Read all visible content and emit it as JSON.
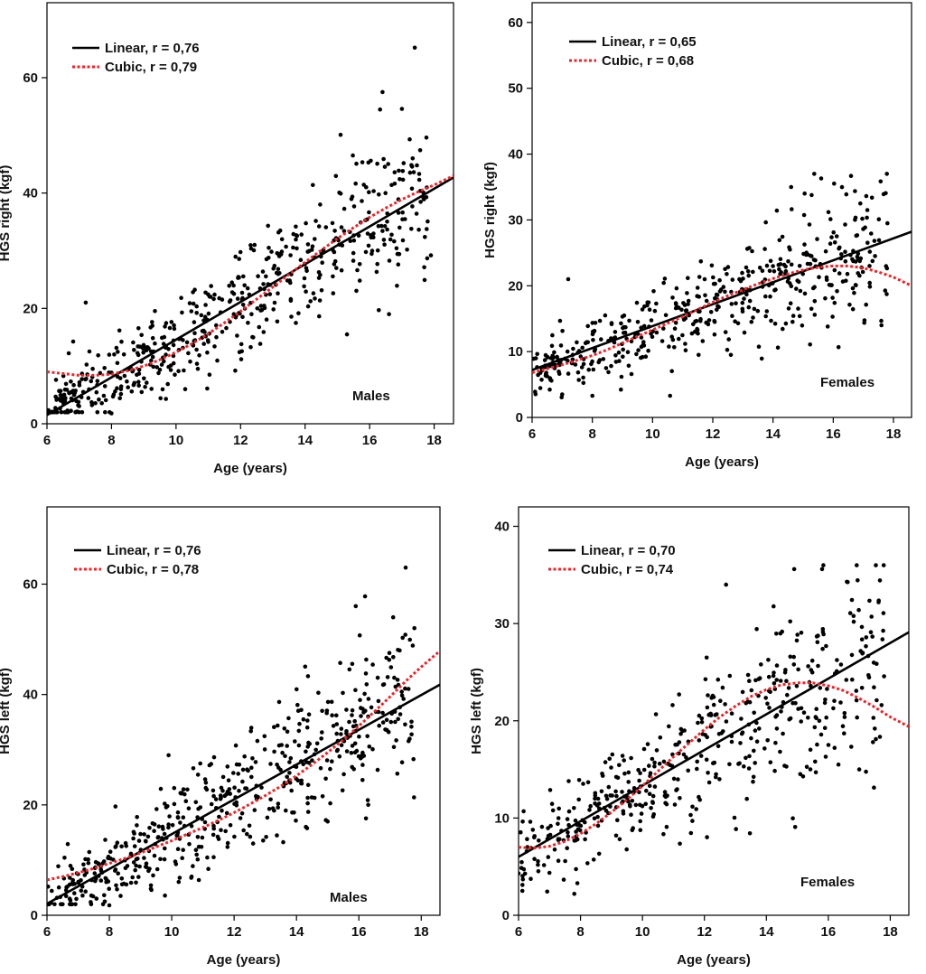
{
  "colors": {
    "linear": "#000000",
    "cubic": "#e8262b",
    "points": "#000000",
    "frame": "#000000"
  },
  "chart_data": [
    {
      "type": "scatter",
      "xlabel": "Age (years)",
      "ylabel": "HGS right (kgf)",
      "group_label": "Males",
      "xlim": [
        6,
        18.6
      ],
      "ylim": [
        0,
        73
      ],
      "xticks": [
        6,
        8,
        10,
        12,
        14,
        16,
        18
      ],
      "yticks": [
        0,
        20,
        40,
        60
      ],
      "legend_position": "top-left",
      "series": [
        {
          "name": "Linear, r = 0,76",
          "kind": "linear",
          "x": [
            6,
            18.6
          ],
          "y": [
            1.5,
            42.7
          ]
        },
        {
          "name": "Cubic, r = 0,79",
          "kind": "cubic",
          "x": [
            6,
            6.5,
            7,
            7.5,
            8,
            8.5,
            9,
            9.5,
            10,
            10.5,
            11,
            11.5,
            12,
            12.5,
            13,
            13.5,
            14,
            14.5,
            15,
            15.5,
            16,
            16.5,
            17,
            17.5,
            18,
            18.6
          ],
          "y": [
            9.0,
            8.7,
            8.4,
            8.4,
            8.6,
            9.2,
            10.0,
            11.1,
            12.4,
            13.9,
            15.6,
            17.5,
            19.5,
            21.6,
            23.7,
            25.9,
            28.0,
            30.1,
            32.1,
            34.0,
            35.8,
            37.4,
            38.9,
            40.2,
            41.4,
            43.0
          ]
        }
      ],
      "points": {
        "count": 540,
        "age_range": [
          6,
          17.8
        ],
        "linear_fit": [
          1.5,
          42.7
        ],
        "spread": [
          2.5,
          0.42
        ],
        "clip": [
          2,
          66
        ],
        "seed": 11,
        "highlights": [
          [
            17.4,
            65.2
          ],
          [
            16.4,
            57.5
          ],
          [
            17.0,
            54.6
          ],
          [
            15.1,
            50.1
          ],
          [
            7.8,
            2.0
          ],
          [
            8.0,
            1.8
          ],
          [
            15.3,
            15.5
          ],
          [
            16.6,
            19.0
          ],
          [
            17.9,
            29.2
          ],
          [
            7.2,
            21.0
          ]
        ]
      }
    },
    {
      "type": "scatter",
      "xlabel": "Age (years)",
      "ylabel": "HGS right (kgf)",
      "group_label": "Females",
      "xlim": [
        6,
        18.6
      ],
      "ylim": [
        0,
        63
      ],
      "xticks": [
        6,
        8,
        10,
        12,
        14,
        16,
        18
      ],
      "yticks": [
        0,
        10,
        20,
        30,
        40,
        50,
        60
      ],
      "legend_position": "top-right",
      "series": [
        {
          "name": "Linear, r = 0,65",
          "kind": "linear",
          "x": [
            6,
            18.6
          ],
          "y": [
            7.2,
            28.2
          ]
        },
        {
          "name": "Cubic, r = 0,68",
          "kind": "cubic",
          "x": [
            6,
            6.5,
            7,
            7.5,
            8,
            8.5,
            9,
            9.5,
            10,
            10.5,
            11,
            11.5,
            12,
            12.5,
            13,
            13.5,
            14,
            14.5,
            15,
            15.5,
            16,
            16.5,
            17,
            17.5,
            18,
            18.6
          ],
          "y": [
            6.8,
            7.4,
            8.0,
            8.7,
            9.4,
            10.3,
            11.3,
            12.3,
            13.3,
            14.3,
            15.3,
            16.4,
            17.5,
            18.5,
            19.4,
            20.3,
            21.1,
            21.8,
            22.4,
            22.8,
            23.0,
            23.0,
            22.7,
            22.1,
            21.3,
            20.0
          ]
        }
      ],
      "points": {
        "count": 470,
        "age_range": [
          6,
          17.8
        ],
        "linear_fit": [
          7.2,
          28.2
        ],
        "spread": [
          1.8,
          0.3
        ],
        "clip": [
          3,
          37
        ],
        "seed": 23,
        "highlights": [
          [
            7.2,
            21.0
          ],
          [
            14.6,
            35.0
          ],
          [
            15.6,
            36.3
          ],
          [
            16.9,
            32.5
          ],
          [
            6.1,
            3.9
          ],
          [
            7.0,
            3.5
          ],
          [
            12.6,
            9.5
          ],
          [
            17.6,
            14.0
          ],
          [
            17.8,
            29.5
          ],
          [
            8.0,
            3.3
          ]
        ]
      }
    },
    {
      "type": "scatter",
      "xlabel": "Age (years)",
      "ylabel": "HGS left (kgf)",
      "group_label": "Males",
      "xlim": [
        6,
        18.6
      ],
      "ylim": [
        0,
        74
      ],
      "xticks": [
        6,
        8,
        10,
        12,
        14,
        16,
        18
      ],
      "yticks": [
        0,
        20,
        40,
        60
      ],
      "legend_position": "top-left",
      "series": [
        {
          "name": "Linear, r = 0,76",
          "kind": "linear",
          "x": [
            6,
            18.6
          ],
          "y": [
            2.1,
            41.8
          ]
        },
        {
          "name": "Cubic, r = 0,78",
          "kind": "cubic",
          "x": [
            6,
            6.5,
            7,
            7.5,
            8,
            8.5,
            9,
            9.5,
            10,
            10.5,
            11,
            11.5,
            12,
            12.5,
            13,
            13.5,
            14,
            14.5,
            15,
            15.5,
            16,
            16.5,
            17,
            17.5,
            18,
            18.6
          ],
          "y": [
            6.4,
            7.0,
            7.7,
            8.5,
            9.4,
            10.3,
            11.3,
            12.4,
            13.5,
            14.7,
            15.9,
            17.2,
            18.6,
            20.1,
            21.7,
            23.4,
            25.3,
            27.3,
            29.5,
            31.8,
            34.3,
            36.9,
            39.6,
            42.4,
            45.0,
            47.9
          ]
        }
      ],
      "points": {
        "count": 530,
        "age_range": [
          6,
          17.8
        ],
        "linear_fit": [
          2.1,
          41.8
        ],
        "spread": [
          2.6,
          0.42
        ],
        "clip": [
          2,
          64
        ],
        "seed": 37,
        "highlights": [
          [
            17.5,
            63.0
          ],
          [
            16.2,
            57.8
          ],
          [
            15.9,
            56.0
          ],
          [
            17.1,
            54.0
          ],
          [
            7.8,
            2.0
          ],
          [
            8.0,
            1.8
          ],
          [
            15.0,
            17.0
          ],
          [
            16.3,
            20.0
          ],
          [
            9.9,
            29.0
          ],
          [
            6.5,
            2.0
          ]
        ]
      }
    },
    {
      "type": "scatter",
      "xlabel": "Age (years)",
      "ylabel": "HGS left (kgf)",
      "group_label": "Females",
      "xlim": [
        6,
        18.6
      ],
      "ylim": [
        0,
        42
      ],
      "xticks": [
        6,
        8,
        10,
        12,
        14,
        16,
        18
      ],
      "yticks": [
        0,
        10,
        20,
        30,
        40
      ],
      "legend_position": "top-left",
      "series": [
        {
          "name": "Linear, r = 0,70",
          "kind": "linear",
          "x": [
            6,
            18.6
          ],
          "y": [
            6.0,
            29.1
          ]
        },
        {
          "name": "Cubic, r = 0,74",
          "kind": "cubic",
          "x": [
            6,
            6.5,
            7,
            7.5,
            8,
            8.5,
            9,
            9.5,
            10,
            10.5,
            11,
            11.5,
            12,
            12.5,
            13,
            13.5,
            14,
            14.5,
            15,
            15.5,
            16,
            16.5,
            17,
            17.5,
            18,
            18.6
          ],
          "y": [
            7.0,
            6.9,
            7.1,
            7.6,
            8.4,
            9.4,
            10.6,
            11.9,
            13.3,
            14.8,
            16.3,
            17.7,
            19.1,
            20.4,
            21.5,
            22.5,
            23.2,
            23.7,
            23.9,
            23.9,
            23.6,
            23.1,
            22.3,
            21.4,
            20.4,
            19.4
          ]
        }
      ],
      "points": {
        "count": 470,
        "age_range": [
          6,
          17.8
        ],
        "linear_fit": [
          6.0,
          29.1
        ],
        "spread": [
          2.0,
          0.3
        ],
        "clip": [
          2,
          36
        ],
        "seed": 53,
        "highlights": [
          [
            14.9,
            35.6
          ],
          [
            15.8,
            35.6
          ],
          [
            16.6,
            34.3
          ],
          [
            12.7,
            34.0
          ],
          [
            7.8,
            2.2
          ],
          [
            7.9,
            3.3
          ],
          [
            6.0,
            4.3
          ],
          [
            15.6,
            14.7
          ],
          [
            17.0,
            15.0
          ],
          [
            17.5,
            19.2
          ]
        ]
      }
    }
  ]
}
